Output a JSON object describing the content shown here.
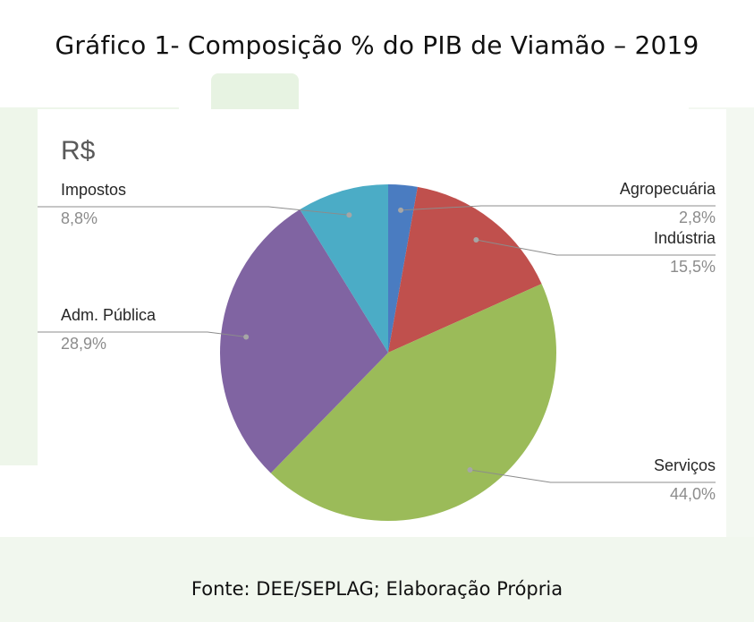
{
  "title": "Gráfico 1- Composição % do PIB de Viamão – 2019",
  "source": "Fonte: DEE/SEPLAG; Elaboração Própria",
  "chart_data": {
    "type": "pie",
    "title": "R$",
    "labels": [
      "Agropecuária",
      "Indústria",
      "Serviços",
      "Adm. Pública",
      "Impostos"
    ],
    "values": [
      2.8,
      15.5,
      44.0,
      28.9,
      8.8
    ],
    "value_labels": [
      "2,8%",
      "15,5%",
      "44,0%",
      "28,9%",
      "8,8%"
    ],
    "colors": [
      "#4a7cc1",
      "#c0504d",
      "#9bbb59",
      "#8064a2",
      "#4bacc6"
    ],
    "start": "top",
    "direction": "clockwise",
    "label_placement": "outside with leader lines"
  }
}
